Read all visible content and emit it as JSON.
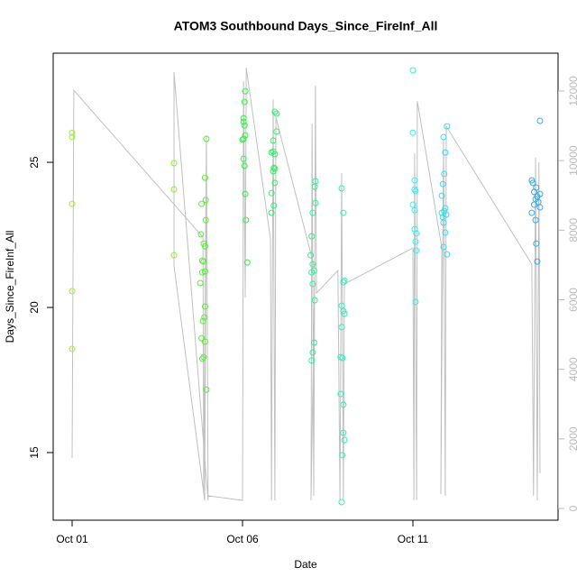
{
  "chart_data": {
    "type": "scatter",
    "title": "ATOM3 Southbound Days_Since_FireInf_All",
    "x_label": "Date",
    "y_label": "Days_Since_FireInf_All",
    "xlim": [
      -0.556,
      14.26
    ],
    "ylim": [
      12.67,
      28.76
    ],
    "y2lim": [
      -337,
      13088
    ],
    "xticks": [
      {
        "value": 0,
        "label": "Oct 01"
      },
      {
        "value": 5,
        "label": "Oct 06"
      },
      {
        "value": 10,
        "label": "Oct 11"
      }
    ],
    "yticks": [
      15,
      20,
      25
    ],
    "y2ticks": [
      0,
      2000,
      4000,
      6000,
      8000,
      10000,
      12000
    ],
    "series": [
      {
        "color": "#99ee33",
        "x": [
          0,
          0,
          0,
          0,
          0
        ],
        "values": [
          26.02,
          25.87,
          23.57,
          20.56,
          18.57
        ]
      },
      {
        "color": "#88ee33",
        "x": [
          2.99,
          2.99,
          2.99
        ],
        "values": [
          24.97,
          24.07,
          21.8
        ]
      },
      {
        "color": "#55ee33",
        "x": [
          3.94,
          3.9,
          3.92,
          3.8,
          3.92,
          3.78,
          3.86,
          3.9,
          3.82,
          3.86,
          3.9,
          3.82,
          3.76,
          3.9,
          3.88,
          3.84,
          3.8,
          3.9,
          3.86,
          3.82,
          3.94
        ],
        "values": [
          25.81,
          24.47,
          23.7,
          23.57,
          23.01,
          22.52,
          22.2,
          22.11,
          21.61,
          21.58,
          21.24,
          21.21,
          20.84,
          20.03,
          19.66,
          19.53,
          18.94,
          18.82,
          18.29,
          18.23,
          17.17
        ]
      },
      {
        "color": "#33ee44",
        "x": [
          5.08,
          5.06,
          5.03,
          5.03,
          5.06,
          5.08,
          5.03,
          5.0,
          5.03,
          5.06,
          5.08,
          5.1,
          5.14
        ],
        "values": [
          27.45,
          27.08,
          26.52,
          26.4,
          26.27,
          25.93,
          25.81,
          25.78,
          25.12,
          24.88,
          23.91,
          23.01,
          21.55
        ]
      },
      {
        "color": "#33ee66",
        "x": [
          5.95,
          6.0,
          6.0,
          5.9,
          5.9,
          5.85,
          5.95,
          5.92,
          5.95,
          5.9,
          5.95,
          5.85,
          5.92,
          5.85
        ],
        "values": [
          26.74,
          26.68,
          26.06,
          25.75,
          25.37,
          25.34,
          25.28,
          24.81,
          24.78,
          24.69,
          24.29,
          23.94,
          23.51,
          23.26
        ]
      },
      {
        "color": "#33ee99",
        "x": [
          7.14,
          7.12,
          7.14,
          7.06,
          7.03,
          7.0,
          7.06,
          7.1,
          7.03,
          7.06,
          7.12,
          7.1,
          7.06,
          7.03
        ],
        "values": [
          24.35,
          24.16,
          23.6,
          23.26,
          22.45,
          21.8,
          21.49,
          21.27,
          21.21,
          20.81,
          20.25,
          18.79,
          18.45,
          18.17
        ]
      },
      {
        "color": "#33eebb",
        "x": [
          7.91,
          7.96,
          7.99,
          7.96,
          7.91,
          7.96,
          7.99,
          7.91,
          7.88,
          7.93,
          7.88,
          7.96,
          7.96,
          7.99,
          7.93,
          7.91
        ],
        "values": [
          24.1,
          23.26,
          20.93,
          20.87,
          20.06,
          19.88,
          19.78,
          19.32,
          18.29,
          18.26,
          17.02,
          16.65,
          15.68,
          15.43,
          14.91,
          13.29
        ]
      },
      {
        "color": "#33eeee",
        "x": [
          10.0,
          10.0,
          10.05,
          10.05,
          10.08,
          10.0,
          10.05,
          10.05,
          10.1,
          10.08,
          10.1,
          10.08
        ],
        "values": [
          28.17,
          26.02,
          24.38,
          24.07,
          24.01,
          23.54,
          23.35,
          22.7,
          22.55,
          22.27,
          21.96,
          20.19
        ]
      },
      {
        "color": "#33ddee",
        "x": [
          11.0,
          10.9,
          10.95,
          10.92,
          10.88,
          10.85,
          10.95,
          10.92,
          10.85,
          10.98,
          10.88,
          10.9,
          10.95,
          10.9,
          11.0
        ],
        "values": [
          26.24,
          25.87,
          25.34,
          24.6,
          24.25,
          23.85,
          23.42,
          23.32,
          23.26,
          23.2,
          23.11,
          22.92,
          22.58,
          22.08,
          21.83
        ]
      },
      {
        "color": "#33aaee",
        "x": [
          13.73,
          13.49,
          13.52,
          13.62,
          13.56,
          13.73,
          13.65,
          13.6,
          13.68,
          13.56,
          13.73,
          13.49,
          13.6,
          13.62,
          13.65
        ],
        "values": [
          26.43,
          24.38,
          24.29,
          24.13,
          23.98,
          23.91,
          23.82,
          23.73,
          23.63,
          23.54,
          23.45,
          23.26,
          23.01,
          22.2,
          21.58
        ]
      },
      {
        "type": "line",
        "axis": "y2",
        "color": "#c0c0c0",
        "x": [
          0,
          0.05,
          3.84,
          3.86,
          3.94,
          3.99,
          2.99,
          2.99,
          3.89,
          3.94,
          3.99,
          5.0,
          5.03,
          5.08,
          5.11,
          5.82,
          5.85,
          5.9,
          5.95,
          5.98,
          7.12,
          7.01,
          7.04,
          7.09,
          7.14,
          7.17,
          7.8,
          7.86,
          7.91,
          7.96,
          7.99,
          10.0,
          10.03,
          10.05,
          10.11,
          10.13,
          10.85,
          10.82,
          10.9,
          10.95,
          10.98,
          13.49,
          13.54,
          13.6,
          13.65,
          13.7,
          13.73
        ],
        "values": [
          1451,
          12021,
          7798,
          492,
          10725,
          233,
          12539,
          6969,
          233,
          10466,
          363,
          233,
          12280,
          6062,
          12669,
          7746,
          233,
          11762,
          233,
          11244,
          6891,
          233,
          11062,
          363,
          12150,
          6192,
          6839,
          233,
          9637,
          233,
          6451,
          7487,
          233,
          10207,
          233,
          11710,
          7487,
          415,
          10596,
          363,
          10985,
          7021,
          363,
          10078,
          233,
          9948,
          1010
        ]
      }
    ]
  }
}
